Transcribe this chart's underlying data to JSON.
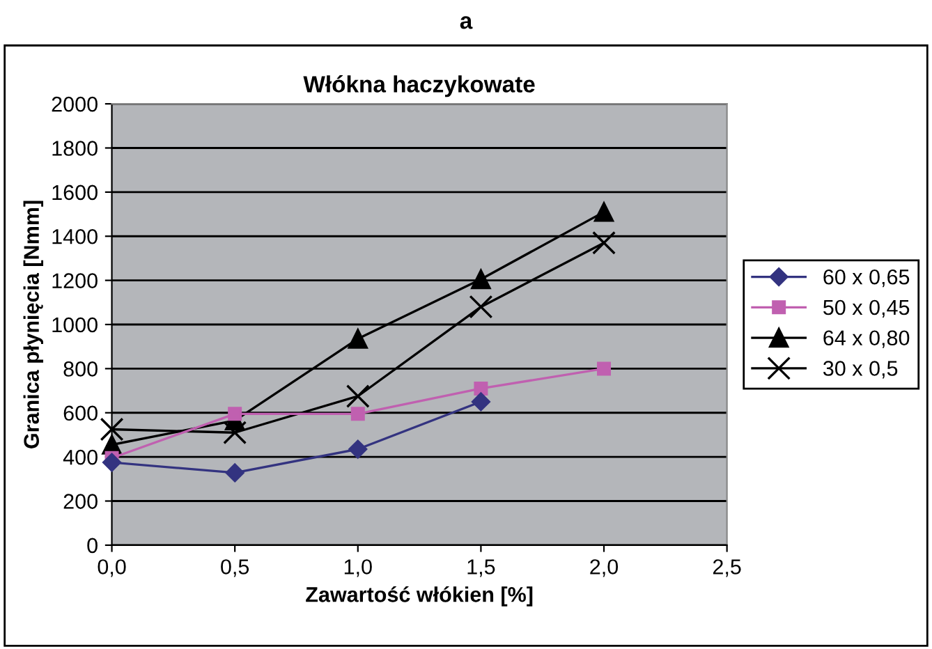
{
  "chart_data": {
    "type": "line",
    "title": "Włókna haczykowate",
    "subtitle": "a",
    "xlabel": "Zawartość włókien [%]",
    "ylabel": "Granica płynięcia [Nmm]",
    "x": [
      0,
      0.5,
      1.0,
      1.5,
      2.0
    ],
    "series": [
      {
        "name": "60 x 0,65",
        "color": "#333380",
        "marker": "diamond",
        "values": [
          375,
          328,
          435,
          650,
          null
        ]
      },
      {
        "name": "50 x 0,45",
        "color": "#c060b0",
        "marker": "square",
        "values": [
          395,
          595,
          595,
          710,
          800
        ]
      },
      {
        "name": "64 x 0,80",
        "color": "#000000",
        "marker": "triangle",
        "values": [
          455,
          565,
          935,
          1205,
          1510
        ]
      },
      {
        "name": "30 x 0,5",
        "color": "#000000",
        "marker": "cross",
        "values": [
          525,
          510,
          675,
          1080,
          1370
        ]
      }
    ],
    "xlim": [
      0,
      2.5
    ],
    "xticks": [
      {
        "value": 0,
        "label": "0,0"
      },
      {
        "value": 0.5,
        "label": "0,5"
      },
      {
        "value": 1.0,
        "label": "1,0"
      },
      {
        "value": 1.5,
        "label": "1,5"
      },
      {
        "value": 2.0,
        "label": "2,0"
      },
      {
        "value": 2.5,
        "label": "2,5"
      }
    ],
    "ylim": [
      0,
      2000
    ],
    "yticks": [
      0,
      200,
      400,
      600,
      800,
      1000,
      1200,
      1400,
      1600,
      1800,
      2000
    ],
    "grid": "y",
    "legend": "right",
    "line_style": "solid"
  }
}
